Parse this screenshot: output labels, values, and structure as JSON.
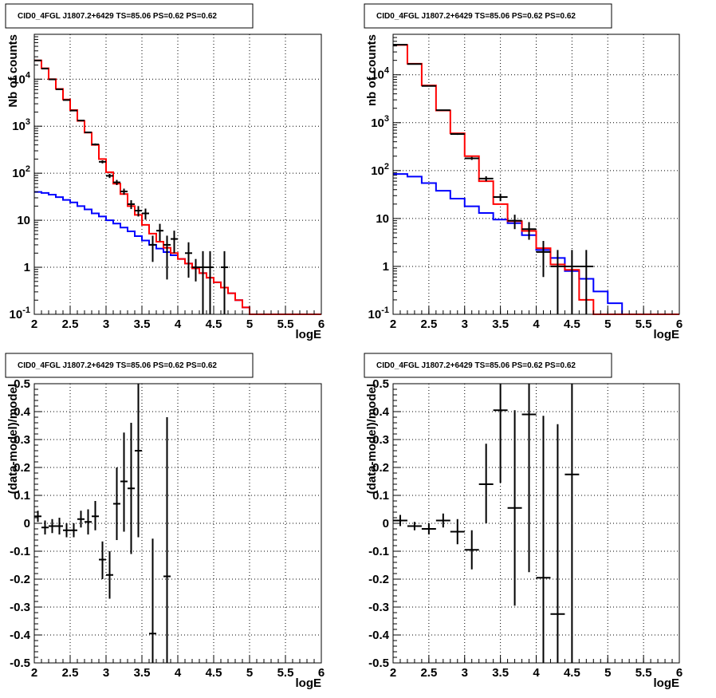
{
  "chart_data": [
    {
      "type": "histogram",
      "title": "CID0_4FGL J1807.2+6429 TS=85.06 PS=0.62 PS=0.62",
      "xlabel": "logE",
      "ylabel": "Nb of counts",
      "xlim": [
        2,
        6
      ],
      "ylim": [
        0.1,
        90000
      ],
      "yscale": "log",
      "grid": true,
      "x_ticks": [
        "2",
        "2.5",
        "3",
        "3.5",
        "4",
        "4.5",
        "5",
        "5.5",
        "6"
      ],
      "y_ticks": [
        "10^-1",
        "1",
        "10",
        "10^2",
        "10^3",
        "10^4"
      ],
      "colors": {
        "total_model": "#ff0000",
        "background_model": "#0000ff",
        "data": "#000000"
      },
      "bin_edges": [
        2.0,
        2.1,
        2.2,
        2.3,
        2.4,
        2.5,
        2.6,
        2.7,
        2.8,
        2.9,
        3.0,
        3.1,
        3.2,
        3.3,
        3.4,
        3.5,
        3.6,
        3.7,
        3.8,
        3.9,
        4.0,
        4.1,
        4.2,
        4.3,
        4.4,
        4.5,
        4.6,
        4.7,
        4.8,
        4.9,
        5.0,
        5.1,
        5.2,
        5.3,
        5.4,
        5.5,
        5.6,
        5.7,
        5.8,
        5.9,
        6.0
      ],
      "series": [
        {
          "values": [
            25000,
            17000,
            10000,
            6200,
            3700,
            2200,
            1300,
            730,
            400,
            200,
            105,
            60,
            36,
            20,
            13,
            8,
            5.2,
            3.5,
            2.6,
            2.0,
            1.5,
            1.2,
            0.95,
            0.75,
            0.6,
            0.48,
            0.37,
            0.28,
            0.2,
            0.14,
            0.1,
            0.1,
            0.1,
            0.1,
            0.1,
            0.1,
            0.1,
            0.1,
            0.1,
            0.1
          ]
        },
        {
          "values": [
            40,
            38,
            35,
            31,
            27,
            24,
            20,
            17,
            14,
            12,
            10,
            8.5,
            7,
            5.8,
            4.6,
            3.7,
            3.0,
            2.5,
            2.1,
            1.8,
            1.5,
            1.2,
            0.95,
            0.75,
            0.6,
            0.48,
            0.37,
            0.28,
            0.2,
            0.14,
            0.1,
            0.1,
            0.1,
            0.1,
            0.1,
            0.1,
            0.1,
            0.1,
            0.1,
            0.1
          ]
        }
      ],
      "points": [
        {
          "x": 2.05,
          "y": 25000,
          "xerr": 0.05,
          "ylo": 24840,
          "yhi": 25160
        },
        {
          "x": 2.15,
          "y": 16800,
          "xerr": 0.05,
          "ylo": 16670,
          "yhi": 16930
        },
        {
          "x": 2.25,
          "y": 9900,
          "xerr": 0.05,
          "ylo": 9800,
          "yhi": 10000
        },
        {
          "x": 2.35,
          "y": 6100,
          "xerr": 0.05,
          "ylo": 6020,
          "yhi": 6180
        },
        {
          "x": 2.45,
          "y": 3600,
          "xerr": 0.05,
          "ylo": 3540,
          "yhi": 3660
        },
        {
          "x": 2.55,
          "y": 2150,
          "xerr": 0.05,
          "ylo": 2104,
          "yhi": 2196
        },
        {
          "x": 2.65,
          "y": 1320,
          "xerr": 0.05,
          "ylo": 1284,
          "yhi": 1356
        },
        {
          "x": 2.75,
          "y": 740,
          "xerr": 0.05,
          "ylo": 713,
          "yhi": 767
        },
        {
          "x": 2.85,
          "y": 410,
          "xerr": 0.05,
          "ylo": 390,
          "yhi": 430
        },
        {
          "x": 2.95,
          "y": 175,
          "xerr": 0.05,
          "ylo": 162,
          "yhi": 188
        },
        {
          "x": 3.05,
          "y": 88,
          "xerr": 0.05,
          "ylo": 79,
          "yhi": 97
        },
        {
          "x": 3.15,
          "y": 64,
          "xerr": 0.05,
          "ylo": 56,
          "yhi": 72
        },
        {
          "x": 3.25,
          "y": 41,
          "xerr": 0.05,
          "ylo": 35,
          "yhi": 47
        },
        {
          "x": 3.35,
          "y": 22,
          "xerr": 0.05,
          "ylo": 17.3,
          "yhi": 26.7
        },
        {
          "x": 3.45,
          "y": 16,
          "xerr": 0.05,
          "ylo": 12,
          "yhi": 20
        },
        {
          "x": 3.55,
          "y": 14,
          "xerr": 0.05,
          "ylo": 10.3,
          "yhi": 17.7
        },
        {
          "x": 3.65,
          "y": 3,
          "xerr": 0.05,
          "ylo": 1.3,
          "yhi": 4.7
        },
        {
          "x": 3.75,
          "y": 6,
          "xerr": 0.05,
          "ylo": 3.6,
          "yhi": 8.4
        },
        {
          "x": 3.85,
          "y": 3,
          "xerr": 0.05,
          "ylo": 0.55,
          "yhi": 4.7
        },
        {
          "x": 3.95,
          "y": 4,
          "xerr": 0.05,
          "ylo": 2,
          "yhi": 6
        },
        {
          "x": 4.15,
          "y": 2,
          "xerr": 0.05,
          "ylo": 0.6,
          "yhi": 3.4
        },
        {
          "x": 4.25,
          "y": 1,
          "xerr": 0.05,
          "ylo": 0.5,
          "yhi": 1.5
        },
        {
          "x": 4.35,
          "y": 1,
          "xerr": 0.05,
          "ylo": 0.1,
          "yhi": 2.2
        },
        {
          "x": 4.45,
          "y": 1,
          "xerr": 0.05,
          "ylo": 0.1,
          "yhi": 2.2
        },
        {
          "x": 4.65,
          "y": 1,
          "xerr": 0.05,
          "ylo": 0.1,
          "yhi": 2.2
        }
      ]
    },
    {
      "type": "histogram",
      "title": "CID0_4FGL J1807.2+6429 TS=85.06 PS=0.62 PS=0.62",
      "xlabel": "logE",
      "ylabel": "nb of counts",
      "xlim": [
        2,
        6
      ],
      "ylim": [
        0.1,
        70000
      ],
      "yscale": "log",
      "grid": true,
      "x_ticks": [
        "2",
        "2.5",
        "3",
        "3.5",
        "4",
        "4.5",
        "5",
        "5.5",
        "6"
      ],
      "y_ticks": [
        "10^-1",
        "1",
        "10",
        "10^2",
        "10^3",
        "10^4"
      ],
      "colors": {
        "total_model": "#ff0000",
        "background_model": "#0000ff",
        "data": "#000000"
      },
      "bin_edges": [
        2.0,
        2.2,
        2.4,
        2.6,
        2.8,
        3.0,
        3.2,
        3.4,
        3.6,
        3.8,
        4.0,
        4.2,
        4.4,
        4.6,
        4.8,
        5.0,
        5.2,
        5.4,
        5.6,
        5.8,
        6.0
      ],
      "series": [
        {
          "values": [
            42000,
            17000,
            6000,
            1800,
            600,
            200,
            60,
            20,
            8.8,
            5.5,
            2.4,
            1.1,
            0.85,
            0.2,
            0.1,
            0.1,
            0.1,
            0.1,
            0.1,
            0.1
          ]
        },
        {
          "values": [
            85,
            75,
            55,
            38,
            26,
            18,
            13,
            9.5,
            8,
            4.5,
            2.2,
            1.5,
            0.8,
            0.55,
            0.3,
            0.17,
            0.1,
            0.1,
            0.1,
            0.1
          ]
        }
      ],
      "points": [
        {
          "x": 2.1,
          "y": 42500,
          "xerr": 0.1,
          "ylo": 42300,
          "yhi": 42700
        },
        {
          "x": 2.3,
          "y": 16800,
          "xerr": 0.1,
          "ylo": 16670,
          "yhi": 16930
        },
        {
          "x": 2.5,
          "y": 5850,
          "xerr": 0.1,
          "ylo": 5774,
          "yhi": 5926
        },
        {
          "x": 2.7,
          "y": 1820,
          "xerr": 0.1,
          "ylo": 1777,
          "yhi": 1863
        },
        {
          "x": 2.9,
          "y": 580,
          "xerr": 0.1,
          "ylo": 556,
          "yhi": 604
        },
        {
          "x": 3.1,
          "y": 180,
          "xerr": 0.1,
          "ylo": 167,
          "yhi": 193
        },
        {
          "x": 3.3,
          "y": 68,
          "xerr": 0.1,
          "ylo": 60,
          "yhi": 76
        },
        {
          "x": 3.5,
          "y": 28,
          "xerr": 0.1,
          "ylo": 23,
          "yhi": 33
        },
        {
          "x": 3.7,
          "y": 9,
          "xerr": 0.1,
          "ylo": 6,
          "yhi": 12
        },
        {
          "x": 3.9,
          "y": 6,
          "xerr": 0.1,
          "ylo": 3.6,
          "yhi": 8.4
        },
        {
          "x": 4.1,
          "y": 2,
          "xerr": 0.1,
          "ylo": 0.6,
          "yhi": 3.4
        },
        {
          "x": 4.3,
          "y": 1,
          "xerr": 0.1,
          "ylo": 0.1,
          "yhi": 2.2
        },
        {
          "x": 4.5,
          "y": 1,
          "xerr": 0.1,
          "ylo": 0.1,
          "yhi": 2.2
        },
        {
          "x": 4.7,
          "y": 1,
          "xerr": 0.1,
          "ylo": 0.1,
          "yhi": 2.2
        }
      ]
    },
    {
      "type": "scatter",
      "title": "CID0_4FGL J1807.2+6429 TS=85.06 PS=0.62 PS=0.62",
      "xlabel": "logE",
      "ylabel": "(data-model)/model",
      "xlim": [
        2,
        6
      ],
      "ylim": [
        -0.5,
        0.5
      ],
      "grid": true,
      "x_ticks": [
        "2",
        "2.5",
        "3",
        "3.5",
        "4",
        "4.5",
        "5",
        "5.5",
        "6"
      ],
      "y_ticks": [
        "-0.5",
        "-0.4",
        "-0.3",
        "-0.2",
        "-0.1",
        "0",
        "0.1",
        "0.2",
        "0.3",
        "0.4",
        "0.5"
      ],
      "points": [
        {
          "x": 2.05,
          "y": 0.025,
          "xerr": 0.05,
          "ylo": 0.005,
          "yhi": 0.045
        },
        {
          "x": 2.15,
          "y": -0.015,
          "xerr": 0.05,
          "ylo": -0.04,
          "yhi": 0.01
        },
        {
          "x": 2.25,
          "y": -0.01,
          "xerr": 0.05,
          "ylo": -0.035,
          "yhi": 0.015
        },
        {
          "x": 2.35,
          "y": -0.01,
          "xerr": 0.05,
          "ylo": -0.04,
          "yhi": 0.02
        },
        {
          "x": 2.45,
          "y": -0.025,
          "xerr": 0.05,
          "ylo": -0.05,
          "yhi": 0.0
        },
        {
          "x": 2.55,
          "y": -0.025,
          "xerr": 0.05,
          "ylo": -0.05,
          "yhi": 0.0
        },
        {
          "x": 2.65,
          "y": 0.015,
          "xerr": 0.05,
          "ylo": -0.015,
          "yhi": 0.045
        },
        {
          "x": 2.75,
          "y": 0.005,
          "xerr": 0.05,
          "ylo": -0.04,
          "yhi": 0.05
        },
        {
          "x": 2.85,
          "y": 0.025,
          "xerr": 0.05,
          "ylo": -0.025,
          "yhi": 0.08
        },
        {
          "x": 2.95,
          "y": -0.13,
          "xerr": 0.05,
          "ylo": -0.2,
          "yhi": -0.065
        },
        {
          "x": 3.05,
          "y": -0.185,
          "xerr": 0.05,
          "ylo": -0.27,
          "yhi": -0.1
        },
        {
          "x": 3.15,
          "y": 0.07,
          "xerr": 0.05,
          "ylo": -0.06,
          "yhi": 0.2
        },
        {
          "x": 3.25,
          "y": 0.15,
          "xerr": 0.05,
          "ylo": -0.03,
          "yhi": 0.325
        },
        {
          "x": 3.35,
          "y": 0.125,
          "xerr": 0.05,
          "ylo": -0.11,
          "yhi": 0.36
        },
        {
          "x": 3.45,
          "y": 0.26,
          "xerr": 0.05,
          "ylo": -0.05,
          "yhi": 0.5
        },
        {
          "x": 3.65,
          "y": -0.395,
          "xerr": 0.05,
          "ylo": -0.5,
          "yhi": -0.055
        },
        {
          "x": 3.85,
          "y": -0.19,
          "xerr": 0.05,
          "ylo": -0.5,
          "yhi": 0.38
        }
      ]
    },
    {
      "type": "scatter",
      "title": "CID0_4FGL J1807.2+6429 TS=85.06 PS=0.62 PS=0.62",
      "xlabel": "logE",
      "ylabel": "(data-model)/model",
      "xlim": [
        2,
        6
      ],
      "ylim": [
        -0.5,
        0.5
      ],
      "grid": true,
      "x_ticks": [
        "2",
        "2.5",
        "3",
        "3.5",
        "4",
        "4.5",
        "5",
        "5.5",
        "6"
      ],
      "y_ticks": [
        "-0.5",
        "-0.4",
        "-0.3",
        "-0.2",
        "-0.1",
        "0",
        "0.1",
        "0.2",
        "0.3",
        "0.4",
        "0.5"
      ],
      "points": [
        {
          "x": 2.1,
          "y": 0.01,
          "xerr": 0.1,
          "ylo": -0.01,
          "yhi": 0.03
        },
        {
          "x": 2.3,
          "y": -0.01,
          "xerr": 0.1,
          "ylo": -0.025,
          "yhi": 0.005
        },
        {
          "x": 2.5,
          "y": -0.02,
          "xerr": 0.1,
          "ylo": -0.04,
          "yhi": 0.0
        },
        {
          "x": 2.7,
          "y": 0.01,
          "xerr": 0.1,
          "ylo": -0.015,
          "yhi": 0.035
        },
        {
          "x": 2.9,
          "y": -0.03,
          "xerr": 0.1,
          "ylo": -0.075,
          "yhi": 0.015
        },
        {
          "x": 3.1,
          "y": -0.095,
          "xerr": 0.1,
          "ylo": -0.165,
          "yhi": -0.025
        },
        {
          "x": 3.3,
          "y": 0.14,
          "xerr": 0.1,
          "ylo": 0.0,
          "yhi": 0.285
        },
        {
          "x": 3.5,
          "y": 0.405,
          "xerr": 0.1,
          "ylo": 0.145,
          "yhi": 0.5
        },
        {
          "x": 3.7,
          "y": 0.055,
          "xerr": 0.1,
          "ylo": -0.295,
          "yhi": 0.405
        },
        {
          "x": 3.9,
          "y": 0.39,
          "xerr": 0.1,
          "ylo": -0.175,
          "yhi": 0.5
        },
        {
          "x": 4.1,
          "y": -0.195,
          "xerr": 0.1,
          "ylo": -0.5,
          "yhi": 0.385
        },
        {
          "x": 4.3,
          "y": -0.325,
          "xerr": 0.1,
          "ylo": -0.5,
          "yhi": 0.355
        },
        {
          "x": 4.5,
          "y": 0.175,
          "xerr": 0.1,
          "ylo": -0.5,
          "yhi": 0.5
        }
      ]
    }
  ]
}
